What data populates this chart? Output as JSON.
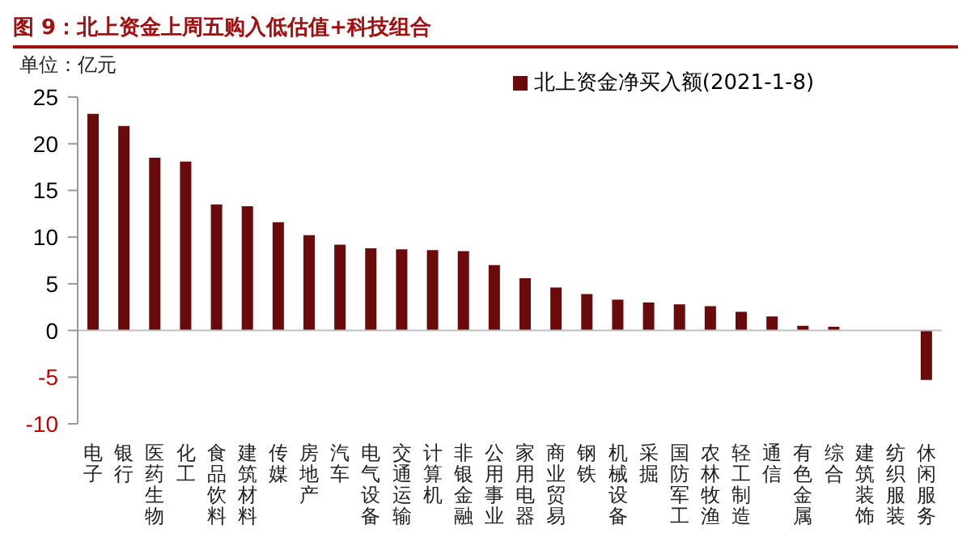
{
  "chart_data": {
    "type": "bar",
    "title": "图 9：北上资金上周五购入低估值+科技组合",
    "ylabel": "单位：亿元",
    "categories": [
      "电子",
      "银行",
      "医药生物",
      "化工",
      "食品饮料",
      "建筑材料",
      "传媒",
      "房地产",
      "汽车",
      "电气设备",
      "交通运输",
      "计算机",
      "非银金融",
      "公用事业",
      "家用电器",
      "商业贸易",
      "钢铁",
      "机械设备",
      "采掘",
      "国防军工",
      "农林牧渔",
      "轻工制造",
      "通信",
      "有色金属",
      "综合",
      "建筑装饰",
      "纺织服装",
      "休闲服务"
    ],
    "series": [
      {
        "name": "北上资金净买入额(2021-1-8)",
        "color": "#6b0a0a",
        "values": [
          23.2,
          21.9,
          18.5,
          18.1,
          13.5,
          13.3,
          11.6,
          10.2,
          9.2,
          8.8,
          8.7,
          8.6,
          8.5,
          7.0,
          5.6,
          4.6,
          3.9,
          3.3,
          3.0,
          2.8,
          2.6,
          2.0,
          1.5,
          0.5,
          0.4,
          0,
          0,
          -5.3
        ]
      }
    ],
    "ylim": [
      -10,
      25
    ],
    "yticks": [
      -10,
      -5,
      0,
      5,
      10,
      15,
      20,
      25
    ],
    "legend": "top",
    "ref_lines": [
      {
        "axis": "y",
        "value": 0,
        "color": "#bfbfbf"
      }
    ]
  }
}
